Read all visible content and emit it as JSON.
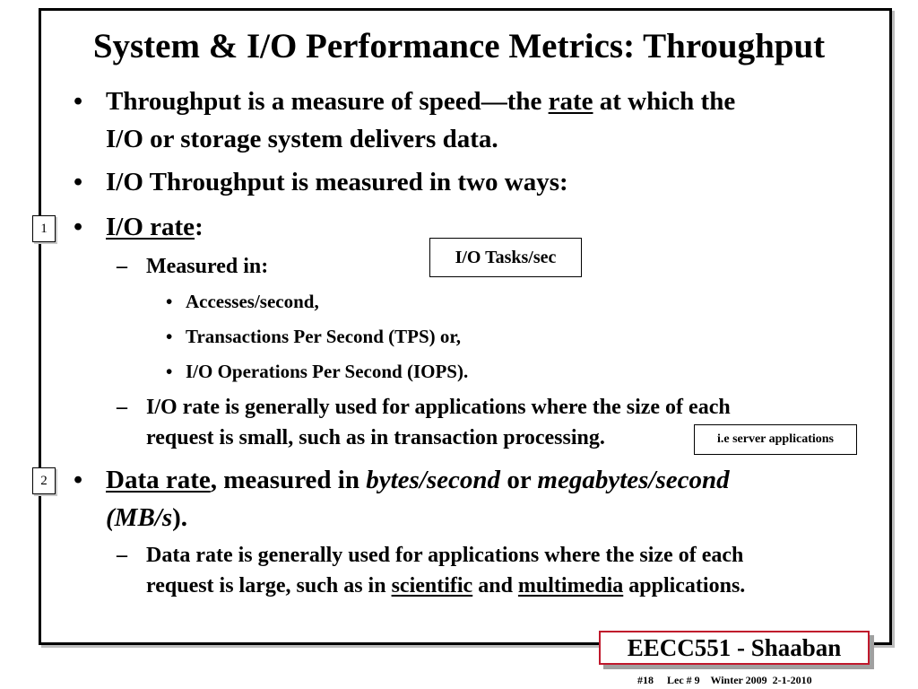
{
  "title": "System & I/O Performance Metrics: Throughput",
  "bullets": {
    "b1_part1": "Throughput is a measure of speed—the ",
    "b1_rate": "rate",
    "b1_part2": " at which the",
    "b1_line2": "I/O or storage system delivers data.",
    "b2": "I/O Throughput is measured in two ways:",
    "b3_label": "I/O rate",
    "b3_colon": ":",
    "b3_sub1": "Measured in:",
    "b3_sub1_items": [
      "Accesses/second,",
      "Transactions Per Second (TPS) or,",
      "I/O Operations Per Second (IOPS)."
    ],
    "b3_sub2_line1": "I/O rate is generally used for applications where the size of each",
    "b3_sub2_line2": "request is small, such as in transaction processing.",
    "b4_label": "Data rate",
    "b4_part1": ", measured in ",
    "b4_bytes": "bytes/second",
    "b4_or": " or ",
    "b4_mb": "megabytes/second",
    "b4_line2_mbs": "(MB/s",
    "b4_line2_end": ").",
    "b4_sub1_line1": "Data rate is generally used for applications where the size of each",
    "b4_sub1_prefix": "request is large, such as in ",
    "b4_sub1_scientific": "scientific",
    "b4_sub1_and": " and ",
    "b4_sub1_multimedia": "multimedia",
    "b4_sub1_suffix": " applications."
  },
  "markers": {
    "bullet": "•",
    "dash": "–",
    "num1": "1",
    "num2": "2"
  },
  "callouts": {
    "io_tasks": "I/O Tasks/sec",
    "server_apps": "i.e server applications"
  },
  "brand": "EECC551 - Shaaban",
  "footer": "#18     Lec # 9    Winter 2009  2-1-2010",
  "colors": {
    "brand_border": "#c0182c",
    "shadow": "#a0a0a0"
  }
}
